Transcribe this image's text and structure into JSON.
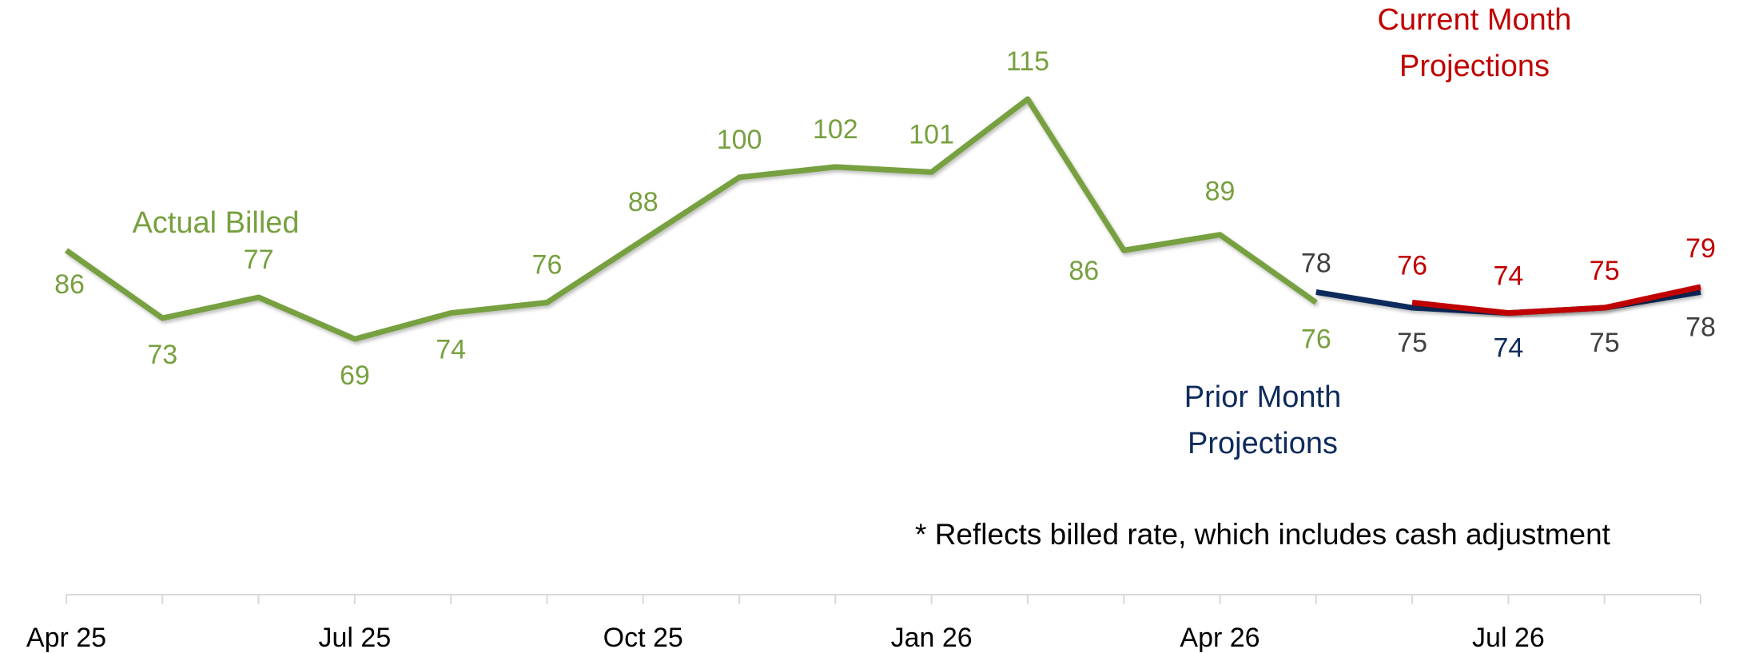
{
  "chart_data": {
    "type": "line",
    "categories": [
      "Apr 25",
      null,
      null,
      "Jul 25",
      null,
      null,
      "Oct 25",
      null,
      null,
      "Jan 26",
      null,
      null,
      "Apr 26",
      null,
      null,
      "Jul 26",
      null,
      null
    ],
    "series": [
      {
        "name": "Actual Billed",
        "color": "#77a03f",
        "values": [
          86,
          73,
          77,
          69,
          74,
          76,
          88,
          100,
          102,
          101,
          115,
          86,
          89,
          76,
          null,
          null,
          null,
          null
        ]
      },
      {
        "name": "Prior Month Projections",
        "color": "#0e2b5c",
        "values": [
          null,
          null,
          null,
          null,
          null,
          null,
          null,
          null,
          null,
          null,
          null,
          null,
          null,
          78,
          75,
          74,
          75,
          78
        ]
      },
      {
        "name": "Current Month Projections",
        "color": "#c00000",
        "values": [
          null,
          null,
          null,
          null,
          null,
          null,
          null,
          null,
          null,
          null,
          null,
          null,
          null,
          null,
          76,
          74,
          75,
          79
        ]
      }
    ],
    "ylim": [
      20,
      134
    ],
    "annotations": [
      "* Reflects billed rate, which includes cash adjustment"
    ]
  }
}
